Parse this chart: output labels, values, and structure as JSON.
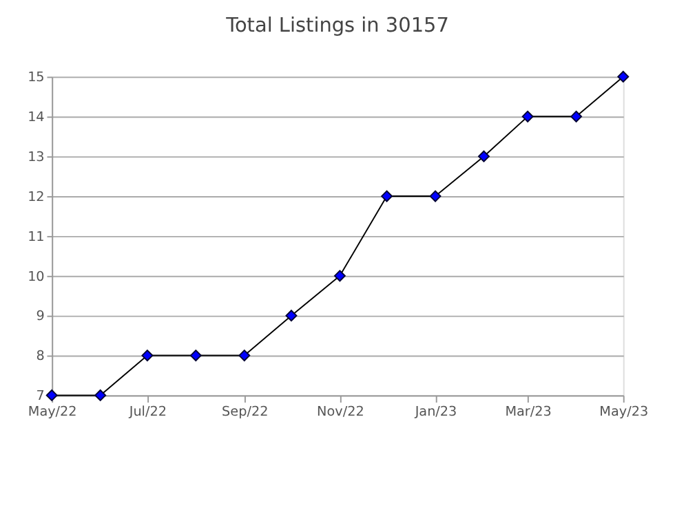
{
  "chart_data": {
    "type": "line",
    "title": "Total Listings in 30157",
    "x": [
      "2022-05",
      "2022-06",
      "2022-07",
      "2022-08",
      "2022-09",
      "2022-10",
      "2022-11",
      "2022-12",
      "2023-01",
      "2023-02",
      "2023-03",
      "2023-04",
      "2023-05"
    ],
    "series": [
      {
        "color": "#0000ff",
        "values": [
          7,
          7,
          8,
          8,
          8,
          9,
          10,
          12,
          12,
          13,
          14,
          14,
          15
        ]
      }
    ],
    "xlim": [
      "2022-05",
      "2023-05"
    ],
    "xticks": [
      {
        "value": "2022-05",
        "label": "May/22"
      },
      {
        "value": "2022-07",
        "label": "Jul/22"
      },
      {
        "value": "2022-09",
        "label": "Sep/22"
      },
      {
        "value": "2022-11",
        "label": "Nov/22"
      },
      {
        "value": "2023-01",
        "label": "Jan/23"
      },
      {
        "value": "2023-03",
        "label": "Mar/23"
      },
      {
        "value": "2023-05",
        "label": "May/23"
      }
    ],
    "ylim": [
      7,
      15
    ],
    "yticks": [
      7,
      8,
      9,
      10,
      11,
      12,
      13,
      14,
      15
    ],
    "grid": "y",
    "marker": "diamond",
    "line_style": "solid",
    "legend": false
  }
}
